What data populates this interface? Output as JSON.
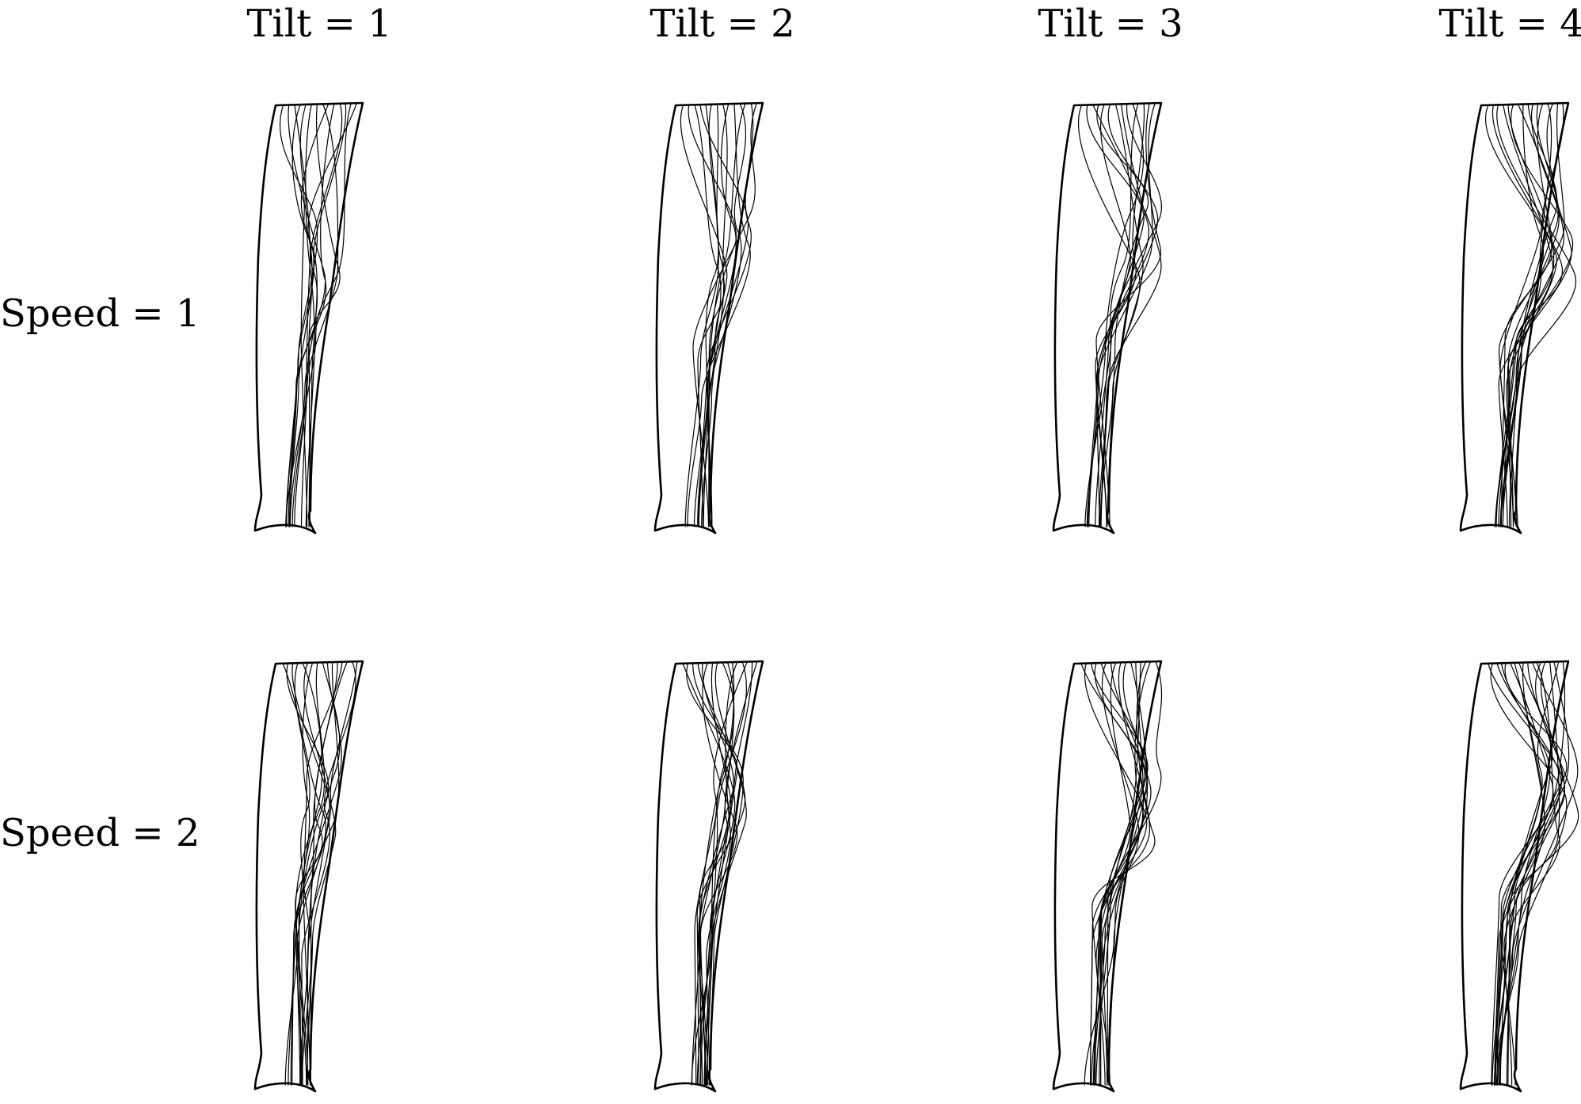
{
  "column_headers": [
    "Tilt = 1",
    "Tilt = 2",
    "Tilt = 3",
    "Tilt = 4"
  ],
  "row_headers": [
    "Speed = 1",
    "Speed = 2"
  ],
  "colors": {
    "background": "#ffffff",
    "stroke": "#000000"
  },
  "panels": [
    {
      "row": "Speed = 1",
      "column": "Tilt = 1",
      "strands": 14
    },
    {
      "row": "Speed = 1",
      "column": "Tilt = 2",
      "strands": 14
    },
    {
      "row": "Speed = 1",
      "column": "Tilt = 3",
      "strands": 14
    },
    {
      "row": "Speed = 1",
      "column": "Tilt = 4",
      "strands": 16
    },
    {
      "row": "Speed = 2",
      "column": "Tilt = 1",
      "strands": 16
    },
    {
      "row": "Speed = 2",
      "column": "Tilt = 2",
      "strands": 16
    },
    {
      "row": "Speed = 2",
      "column": "Tilt = 3",
      "strands": 16
    },
    {
      "row": "Speed = 2",
      "column": "Tilt = 4",
      "strands": 18
    }
  ]
}
